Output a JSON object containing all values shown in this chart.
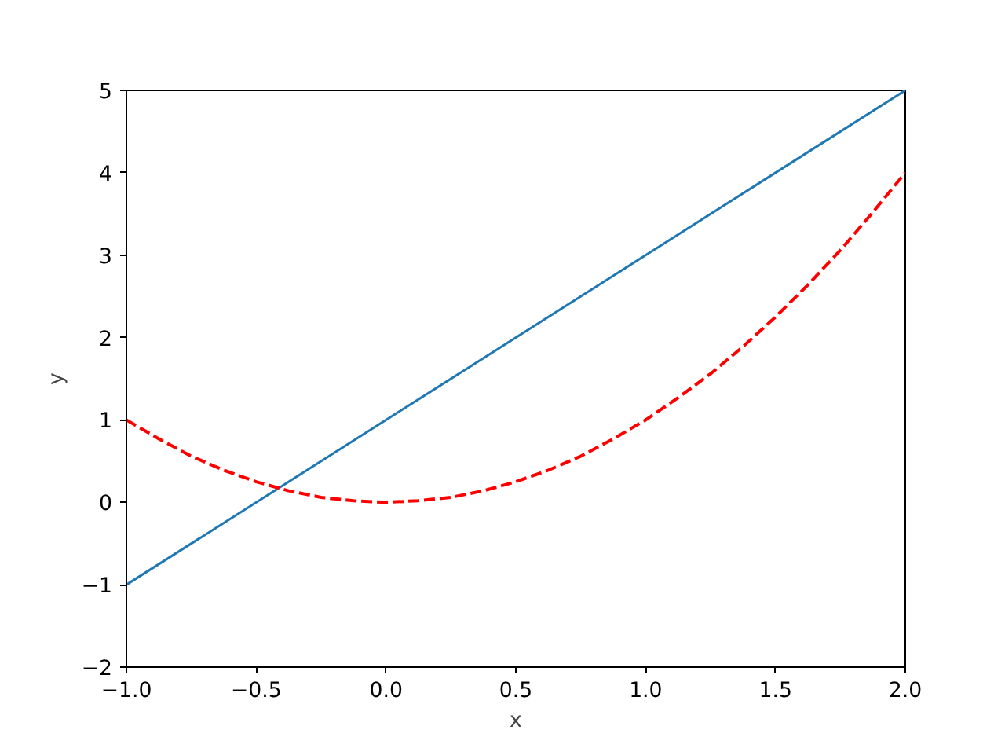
{
  "chart_data": {
    "type": "line",
    "xlabel": "x",
    "ylabel": "y",
    "grid": false,
    "xlim": [
      -1,
      2
    ],
    "ylim": [
      -2,
      5
    ],
    "xticks": [
      {
        "value": -1,
        "label": "−1.0"
      },
      {
        "value": -0.5,
        "label": "−0.5"
      },
      {
        "value": 0,
        "label": "0.0"
      },
      {
        "value": 0.5,
        "label": "0.5"
      },
      {
        "value": 1,
        "label": "1.0"
      },
      {
        "value": 1.5,
        "label": "1.5"
      },
      {
        "value": 2,
        "label": "2.0"
      }
    ],
    "yticks": [
      {
        "value": -2,
        "label": "−2"
      },
      {
        "value": -1,
        "label": "−1"
      },
      0,
      1,
      2,
      3,
      4,
      5
    ],
    "series": [
      {
        "color": "#1f77b4",
        "line_style": "solid",
        "x": [
          -1,
          2
        ],
        "values": [
          -1,
          5
        ]
      },
      {
        "color": "#ff0000",
        "line_style": "dashed",
        "x": [
          -1,
          -0.875,
          -0.75,
          -0.625,
          -0.5,
          -0.375,
          -0.25,
          -0.125,
          0,
          0.125,
          0.25,
          0.375,
          0.5,
          0.625,
          0.75,
          0.875,
          1,
          1.125,
          1.25,
          1.375,
          1.5,
          1.625,
          1.75,
          1.875,
          2
        ],
        "values": [
          1,
          0.77,
          0.56,
          0.39,
          0.25,
          0.14,
          0.06,
          0.02,
          0,
          0.02,
          0.06,
          0.14,
          0.25,
          0.39,
          0.56,
          0.77,
          1,
          1.27,
          1.56,
          1.89,
          2.25,
          2.64,
          3.06,
          3.52,
          4
        ]
      }
    ]
  }
}
